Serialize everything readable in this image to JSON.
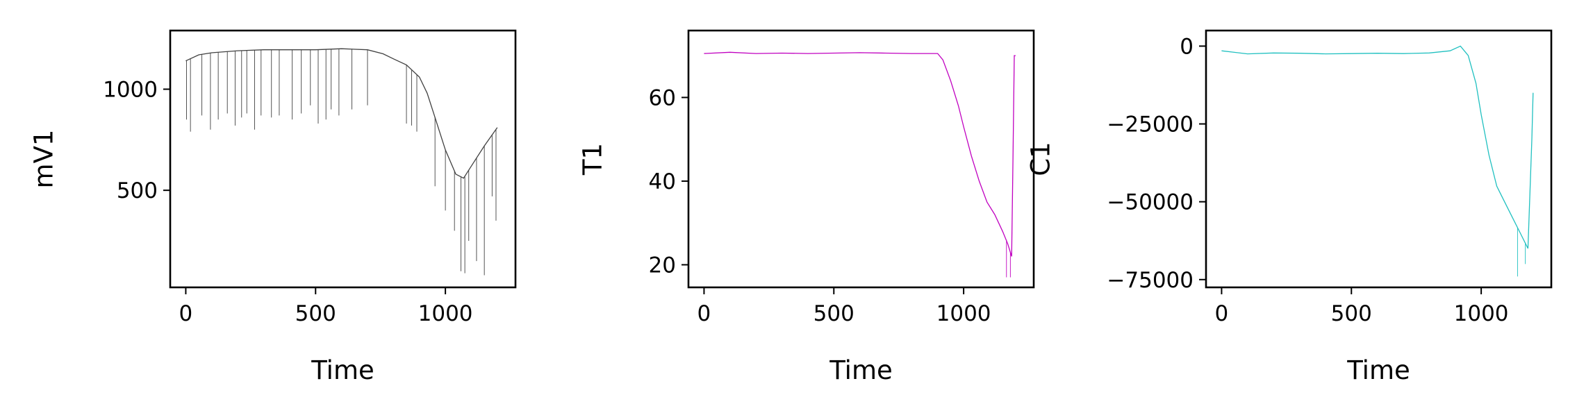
{
  "chart_data": [
    {
      "type": "line",
      "xlabel": "Time",
      "ylabel": "mV1",
      "xlim": [
        -60,
        1270
      ],
      "ylim": [
        20,
        1290
      ],
      "xticks": [
        0,
        500,
        1000
      ],
      "xtick_labels": [
        "0",
        "500",
        "1000"
      ],
      "yticks": [
        500,
        1000
      ],
      "ytick_labels": [
        "500",
        "1000"
      ],
      "grid": false,
      "color": "#404040",
      "series": [
        {
          "x": [
            0,
            50,
            100,
            200,
            300,
            400,
            500,
            600,
            700,
            760,
            800,
            850,
            900,
            930,
            960,
            1000,
            1040,
            1070,
            1100,
            1150,
            1200
          ],
          "values": [
            1140,
            1170,
            1180,
            1190,
            1195,
            1195,
            1195,
            1200,
            1195,
            1175,
            1150,
            1120,
            1060,
            980,
            860,
            700,
            580,
            560,
            620,
            720,
            810
          ]
        }
      ],
      "spikes": {
        "x": [
          3,
          18,
          62,
          95,
          125,
          160,
          190,
          215,
          235,
          265,
          290,
          330,
          360,
          410,
          445,
          480,
          510,
          540,
          560,
          590,
          640,
          700,
          850,
          870,
          890,
          960,
          1000,
          1035,
          1060,
          1075,
          1090,
          1120,
          1150,
          1180,
          1195
        ],
        "values": [
          850,
          790,
          870,
          800,
          850,
          880,
          820,
          860,
          880,
          800,
          870,
          860,
          870,
          850,
          880,
          920,
          830,
          850,
          900,
          870,
          900,
          920,
          830,
          820,
          790,
          520,
          400,
          300,
          100,
          90,
          250,
          150,
          80,
          470,
          350
        ]
      }
    },
    {
      "type": "line",
      "xlabel": "Time",
      "ylabel": "T1",
      "xlim": [
        -60,
        1270
      ],
      "ylim": [
        14.6,
        76
      ],
      "xticks": [
        0,
        500,
        1000
      ],
      "xtick_labels": [
        "0",
        "500",
        "1000"
      ],
      "yticks": [
        20,
        40,
        60
      ],
      "ytick_labels": [
        "20",
        "40",
        "60"
      ],
      "grid": false,
      "color": "#c000c0",
      "series": [
        {
          "x": [
            0,
            100,
            200,
            300,
            400,
            500,
            600,
            700,
            800,
            900,
            920,
            950,
            980,
            1000,
            1030,
            1060,
            1090,
            1120,
            1150,
            1170,
            1185,
            1190,
            1195,
            1200
          ],
          "values": [
            70.5,
            70.8,
            70.5,
            70.6,
            70.5,
            70.6,
            70.7,
            70.6,
            70.5,
            70.5,
            69,
            64,
            58,
            53,
            46,
            40,
            35,
            32,
            28,
            25,
            22,
            45,
            70,
            70
          ]
        }
      ],
      "spikes": {
        "x": [
          1165,
          1180
        ],
        "values": [
          17,
          17
        ]
      }
    },
    {
      "type": "line",
      "xlabel": "Time",
      "ylabel": "C1",
      "xlim": [
        -60,
        1270
      ],
      "ylim": [
        -77500,
        5000
      ],
      "xticks": [
        0,
        500,
        1000
      ],
      "xtick_labels": [
        "0",
        "500",
        "1000"
      ],
      "yticks": [
        -75000,
        -50000,
        -25000,
        0
      ],
      "ytick_labels": [
        "−75000",
        "−50000",
        "−25000",
        "0"
      ],
      "grid": false,
      "color": "#20c0c0",
      "series": [
        {
          "x": [
            0,
            100,
            200,
            300,
            400,
            500,
            600,
            700,
            800,
            880,
            920,
            950,
            980,
            1000,
            1030,
            1060,
            1090,
            1120,
            1150,
            1180,
            1195,
            1200
          ],
          "values": [
            -1500,
            -2500,
            -2200,
            -2300,
            -2500,
            -2400,
            -2300,
            -2400,
            -2200,
            -1500,
            0,
            -3000,
            -12000,
            -22000,
            -35000,
            -45000,
            -50000,
            -55000,
            -60000,
            -65000,
            -30000,
            -15000
          ]
        }
      ],
      "spikes": {
        "x": [
          1140,
          1170
        ],
        "values": [
          -74000,
          -70000
        ]
      }
    }
  ]
}
